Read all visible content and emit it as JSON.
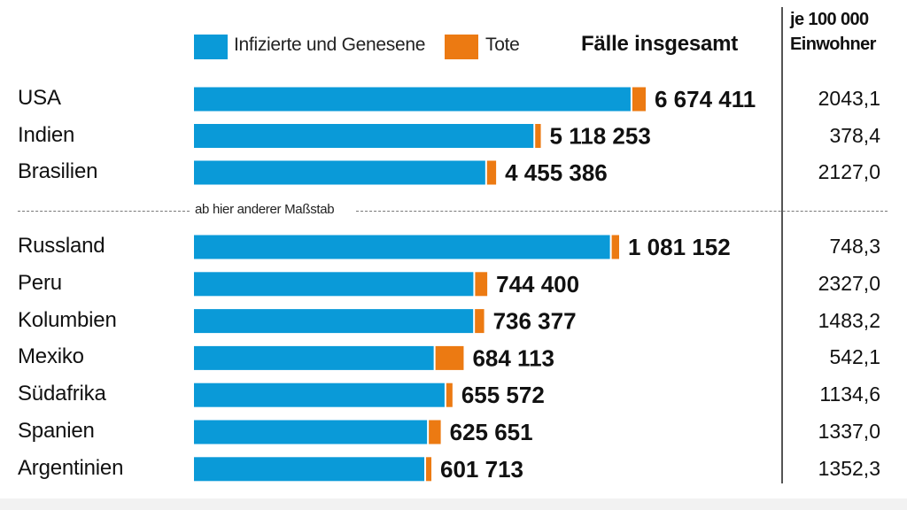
{
  "legend": {
    "infected_label": "Infizierte und Genesene",
    "deaths_label": "Tote",
    "infected_color": "#0a9ad8",
    "deaths_color": "#ec7a12"
  },
  "total_header": "Fälle insgesamt",
  "per_header_line1": "je 100 000",
  "per_header_line2": "Einwohner",
  "scale_note": "ab hier anderer Maßstab",
  "chart_data": {
    "type": "bar",
    "orientation": "horizontal",
    "stacked": true,
    "series": [
      {
        "name": "Infizierte und Genesene",
        "color": "#0a9ad8"
      },
      {
        "name": "Tote",
        "color": "#ec7a12"
      }
    ],
    "groups": [
      {
        "scale_note": "",
        "rows": [
          {
            "country": "USA",
            "total": 6674411,
            "total_label": "6 674 411",
            "deaths": 198000,
            "per_100000": "2043,1"
          },
          {
            "country": "Indien",
            "total": 5118253,
            "total_label": "5 118 253",
            "deaths": 83000,
            "per_100000": "378,4"
          },
          {
            "country": "Brasilien",
            "total": 4455386,
            "total_label": "4 455 386",
            "deaths": 135000,
            "per_100000": "2127,0"
          }
        ]
      },
      {
        "scale_note": "ab hier anderer Maßstab",
        "rows": [
          {
            "country": "Russland",
            "total": 1081152,
            "total_label": "1 081 152",
            "deaths": 19000,
            "per_100000": "748,3"
          },
          {
            "country": "Peru",
            "total": 744400,
            "total_label": "744 400",
            "deaths": 31000,
            "per_100000": "2327,0"
          },
          {
            "country": "Kolumbien",
            "total": 736377,
            "total_label": "736 377",
            "deaths": 23500,
            "per_100000": "1483,2"
          },
          {
            "country": "Mexiko",
            "total": 684113,
            "total_label": "684 113",
            "deaths": 72000,
            "per_100000": "542,1"
          },
          {
            "country": "Südafrika",
            "total": 655572,
            "total_label": "655 572",
            "deaths": 15700,
            "per_100000": "1134,6"
          },
          {
            "country": "Spanien",
            "total": 625651,
            "total_label": "625 651",
            "deaths": 30500,
            "per_100000": "1337,0"
          },
          {
            "country": "Argentinien",
            "total": 601713,
            "total_label": "601 713",
            "deaths": 12500,
            "per_100000": "1352,3"
          }
        ]
      }
    ]
  }
}
